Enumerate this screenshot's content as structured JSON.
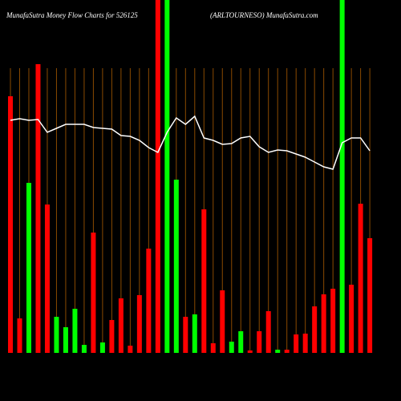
{
  "chart_data": {
    "type": "money-flow",
    "title": "MunafaSutra  Money Flow  Charts for 526125",
    "subtitle": "(ARLTOURNESO) MunafaSutra.com",
    "ylim": [
      0,
      440
    ],
    "grid": true,
    "grid_color": "#8a4a00",
    "bars": {
      "values": [
        320,
        43,
        212,
        360,
        185,
        45,
        32,
        55,
        10,
        150,
        13,
        41,
        68,
        9,
        72,
        130,
        440,
        440,
        216,
        45,
        48,
        179,
        12,
        78,
        14,
        27,
        3,
        27,
        52,
        4,
        4,
        23,
        24,
        58,
        73,
        80,
        440,
        85,
        186,
        143
      ],
      "colors": [
        "#ff0000",
        "#ff0000",
        "#00ff00",
        "#ff0000",
        "#ff0000",
        "#00ff00",
        "#00ff00",
        "#00ff00",
        "#00ff00",
        "#ff0000",
        "#00ff00",
        "#ff0000",
        "#ff0000",
        "#ff0000",
        "#ff0000",
        "#ff0000",
        "#ff0000",
        "#00ff00",
        "#00ff00",
        "#ff0000",
        "#00ff00",
        "#ff0000",
        "#ff0000",
        "#ff0000",
        "#00ff00",
        "#00ff00",
        "#ff0000",
        "#ff0000",
        "#ff0000",
        "#00ff00",
        "#ff0000",
        "#ff0000",
        "#ff0000",
        "#ff0000",
        "#ff0000",
        "#ff0000",
        "#00ff00",
        "#ff0000",
        "#ff0000",
        "#ff0000"
      ]
    },
    "line": {
      "color": "#ffffff",
      "values": [
        290,
        292,
        290,
        291,
        275,
        280,
        285,
        285,
        285,
        281,
        280,
        279,
        271,
        270,
        265,
        256,
        250,
        275,
        293,
        285,
        295,
        268,
        265,
        260,
        261,
        268,
        270,
        257,
        250,
        253,
        252,
        248,
        244,
        238,
        232,
        229,
        262,
        268,
        268,
        252
      ]
    }
  }
}
